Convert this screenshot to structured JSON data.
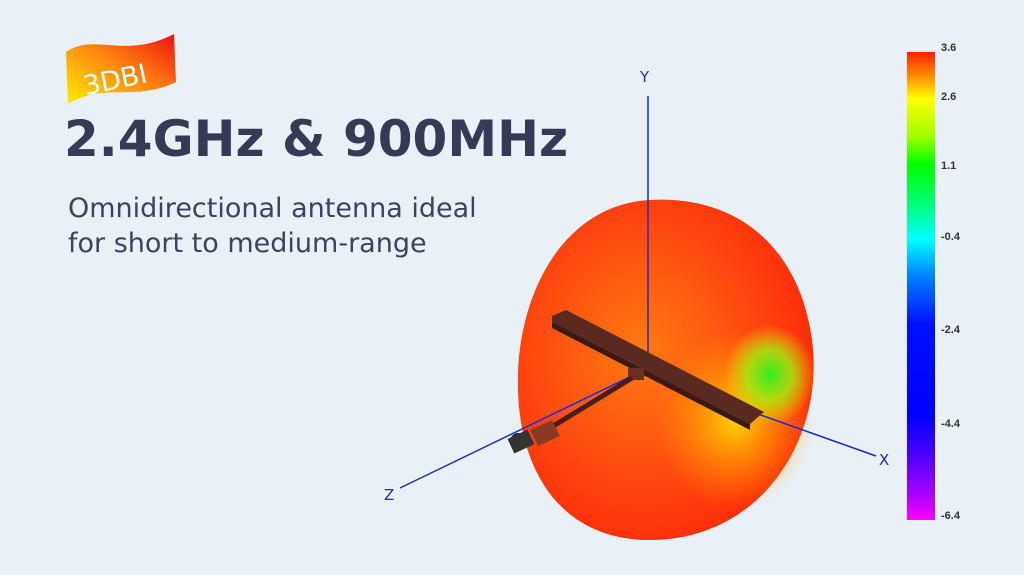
{
  "badge": {
    "text": "3DBI"
  },
  "headline": "2.4GHz & 900MHz",
  "subtitle": {
    "line1": "Omnidirectional antenna ideal",
    "line2": "for short to medium-range"
  },
  "axes": {
    "y": "Y",
    "x": "X",
    "z": "Z"
  },
  "colorbar": {
    "ticks": [
      "3.6",
      "2.6",
      "1.1",
      "-0.4",
      "-2.4",
      "-4.4",
      "-6.4"
    ],
    "colors": [
      "#ff2000",
      "#ffff00",
      "#00ff00",
      "#00ffff",
      "#0000ff",
      "#ff00ff"
    ]
  }
}
